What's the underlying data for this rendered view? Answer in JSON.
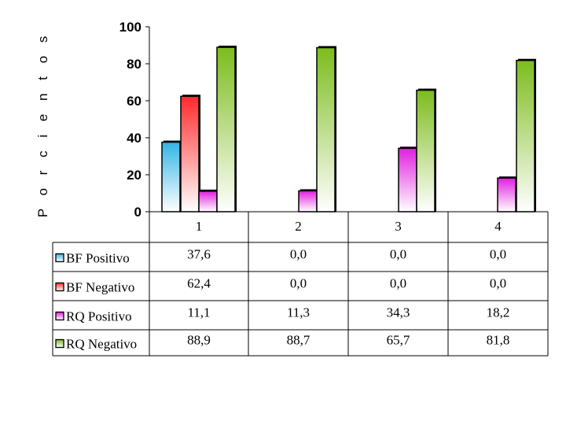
{
  "chart_data": {
    "type": "bar",
    "ylabel": "P o r  c i e n t o s",
    "ylim": [
      0,
      100
    ],
    "yticks": [
      "0",
      "20",
      "40",
      "60",
      "80",
      "100"
    ],
    "categories": [
      "1",
      "2",
      "3",
      "4"
    ],
    "series": [
      {
        "name": "BF Positivo",
        "color": "#33b5e5",
        "values": [
          37.6,
          0.0,
          0.0,
          0.0
        ],
        "labels": [
          "37,6",
          "0,0",
          "0,0",
          "0,0"
        ]
      },
      {
        "name": "BF Negativo",
        "color": "#ff2a2a",
        "values": [
          62.4,
          0.0,
          0.0,
          0.0
        ],
        "labels": [
          "62,4",
          "0,0",
          "0,0",
          "0,0"
        ]
      },
      {
        "name": "RQ  Positivo",
        "color": "#e020e0",
        "values": [
          11.1,
          11.3,
          34.3,
          18.2
        ],
        "labels": [
          "11,1",
          "11,3",
          "34,3",
          "18,2"
        ]
      },
      {
        "name": "RQ  Negativo",
        "color": "#7cbc1c",
        "values": [
          88.9,
          88.7,
          65.7,
          81.8
        ],
        "labels": [
          "88,9",
          "88,7",
          "65,7",
          "81,8"
        ]
      }
    ],
    "grid": false,
    "legend": "table-left"
  }
}
